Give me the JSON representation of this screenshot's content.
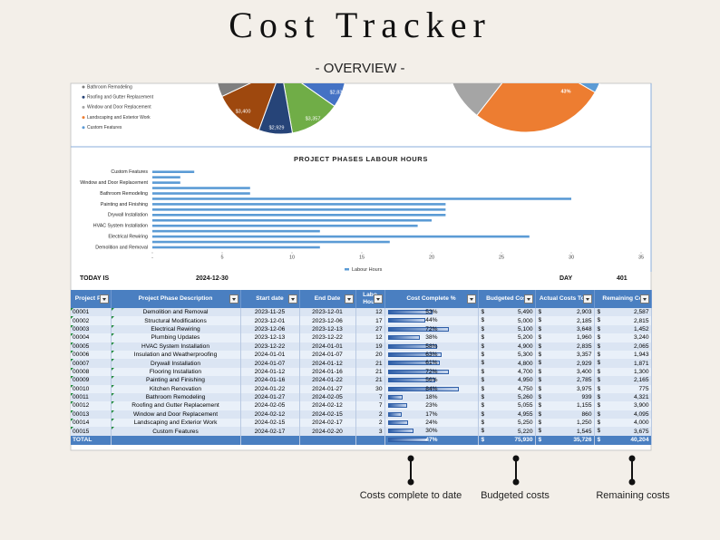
{
  "header": {
    "title": "Cost Tracker",
    "subtitle": "- OVERVIEW -"
  },
  "pie_legend": [
    "Bathroom Remodeling",
    "Roofing and Gutter Replacement",
    "Window and Door Replacement",
    "Landscaping and Exterior Work",
    "Custom Features"
  ],
  "pie_labels": [
    "$3,400",
    "$2,929",
    "$3,357",
    "$2,835",
    "43%"
  ],
  "chart_data": {
    "type": "barh",
    "title": "PROJECT PHASES LABOUR HOURS",
    "categories": [
      "Demolition and Removal",
      null,
      "Electrical Rewiring",
      null,
      "HVAC System Installation",
      null,
      "Drywall Installation",
      null,
      "Painting and Finishing",
      null,
      "Bathroom Remodeling",
      null,
      "Window and Door Replacement",
      null,
      "Custom Features"
    ],
    "series": [
      {
        "name": "Labour Hours",
        "color": "#5b9bd5",
        "values": [
          12,
          17,
          27,
          12,
          19,
          20,
          21,
          21,
          21,
          30,
          7,
          7,
          2,
          2,
          3
        ]
      }
    ],
    "xlim": [
      0,
      35
    ],
    "xticks": [
      {
        "value": 0,
        "label": "-"
      },
      5,
      10,
      15,
      20,
      25,
      30,
      35
    ],
    "legend": "bottom"
  },
  "info": {
    "today_label": "TODAY IS",
    "today": "2024-12-30",
    "day_label": "DAY",
    "day": "401"
  },
  "table": {
    "currency": "$",
    "headers": [
      "Project P #",
      "Project Phase Description",
      "Start date",
      "End Date",
      "Labo Hour",
      "Cost Complete %",
      "Budgeted Cos",
      "Actual Costs To $",
      "Remaining Co"
    ],
    "rows": [
      [
        "00001",
        "Demolition and Removal",
        "2023-11-25",
        "2023-12-01",
        "12",
        "53%",
        "5,490",
        "2,903",
        "2,587"
      ],
      [
        "00002",
        "Structural Modifications",
        "2023-12-01",
        "2023-12-06",
        "17",
        "44%",
        "5,000",
        "2,185",
        "2,815"
      ],
      [
        "00003",
        "Electrical Rewiring",
        "2023-12-06",
        "2023-12-13",
        "27",
        "72%",
        "5,100",
        "3,648",
        "1,452"
      ],
      [
        "00004",
        "Plumbing Updates",
        "2023-12-13",
        "2023-12-22",
        "12",
        "38%",
        "5,200",
        "1,960",
        "3,240"
      ],
      [
        "00005",
        "HVAC System Installation",
        "2023-12-22",
        "2024-01-01",
        "19",
        "58%",
        "4,900",
        "2,835",
        "2,065"
      ],
      [
        "00006",
        "Insulation and Weatherproofing",
        "2024-01-01",
        "2024-01-07",
        "20",
        "63%",
        "5,300",
        "3,357",
        "1,943"
      ],
      [
        "00007",
        "Drywall Installation",
        "2024-01-07",
        "2024-01-12",
        "21",
        "61%",
        "4,800",
        "2,929",
        "1,871"
      ],
      [
        "00008",
        "Flooring Installation",
        "2024-01-12",
        "2024-01-16",
        "21",
        "72%",
        "4,700",
        "3,400",
        "1,300"
      ],
      [
        "00009",
        "Painting and Finishing",
        "2024-01-16",
        "2024-01-22",
        "21",
        "56%",
        "4,950",
        "2,785",
        "2,165"
      ],
      [
        "00010",
        "Kitchen Renovation",
        "2024-01-22",
        "2024-01-27",
        "30",
        "84%",
        "4,750",
        "3,975",
        "775"
      ],
      [
        "00011",
        "Bathroom Remodeling",
        "2024-01-27",
        "2024-02-05",
        "7",
        "18%",
        "5,260",
        "939",
        "4,321"
      ],
      [
        "00012",
        "Roofing and Gutter Replacement",
        "2024-02-05",
        "2024-02-12",
        "7",
        "23%",
        "5,055",
        "1,155",
        "3,900"
      ],
      [
        "00013",
        "Window and Door Replacement",
        "2024-02-12",
        "2024-02-15",
        "2",
        "17%",
        "4,955",
        "860",
        "4,095"
      ],
      [
        "00014",
        "Landscaping and Exterior Work",
        "2024-02-15",
        "2024-02-17",
        "2",
        "24%",
        "5,250",
        "1,250",
        "4,000"
      ],
      [
        "00015",
        "Custom Features",
        "2024-02-17",
        "2024-02-20",
        "3",
        "30%",
        "5,220",
        "1,545",
        "3,675"
      ]
    ],
    "total": {
      "label": "TOTAL",
      "pct": "47%",
      "budget": "75,930",
      "actual": "35,726",
      "remaining": "40,204"
    }
  },
  "annotations": [
    "Costs complete to date",
    "Budgeted costs",
    "Remaining costs"
  ]
}
